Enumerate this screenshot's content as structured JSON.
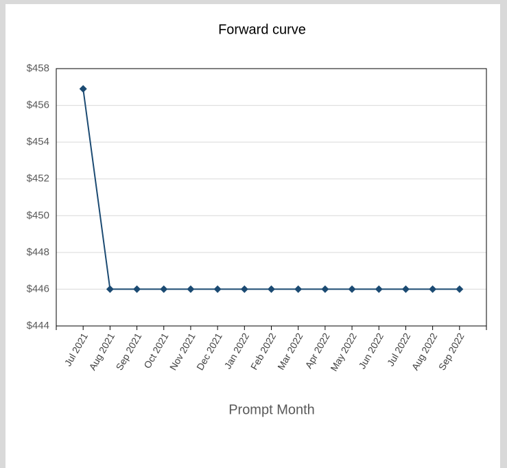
{
  "chart_data": {
    "type": "line",
    "title": "Forward curve",
    "x_label": "Prompt Month",
    "categories": [
      "Jul 2021",
      "Aug 2021",
      "Sep 2021",
      "Oct 2021",
      "Nov 2021",
      "Dec 2021",
      "Jan 2022",
      "Feb 2022",
      "Mar 2022",
      "Apr 2022",
      "May 2022",
      "Jun 2022",
      "Jul 2022",
      "Aug 2022",
      "Sep 2022"
    ],
    "series": [
      {
        "color": "#1b4a72",
        "values": [
          456.9,
          446,
          446,
          446,
          446,
          446,
          446,
          446,
          446,
          446,
          446,
          446,
          446,
          446,
          446
        ]
      }
    ],
    "ylim": [
      444,
      458
    ],
    "yticks": [
      {
        "value": 444,
        "label": "$444"
      },
      {
        "value": 446,
        "label": "$446"
      },
      {
        "value": 448,
        "label": "$448"
      },
      {
        "value": 450,
        "label": "$450"
      },
      {
        "value": 452,
        "label": "$452"
      },
      {
        "value": 454,
        "label": "$454"
      },
      {
        "value": 456,
        "label": "$456"
      },
      {
        "value": 458,
        "label": "$458"
      }
    ],
    "grid": true
  }
}
